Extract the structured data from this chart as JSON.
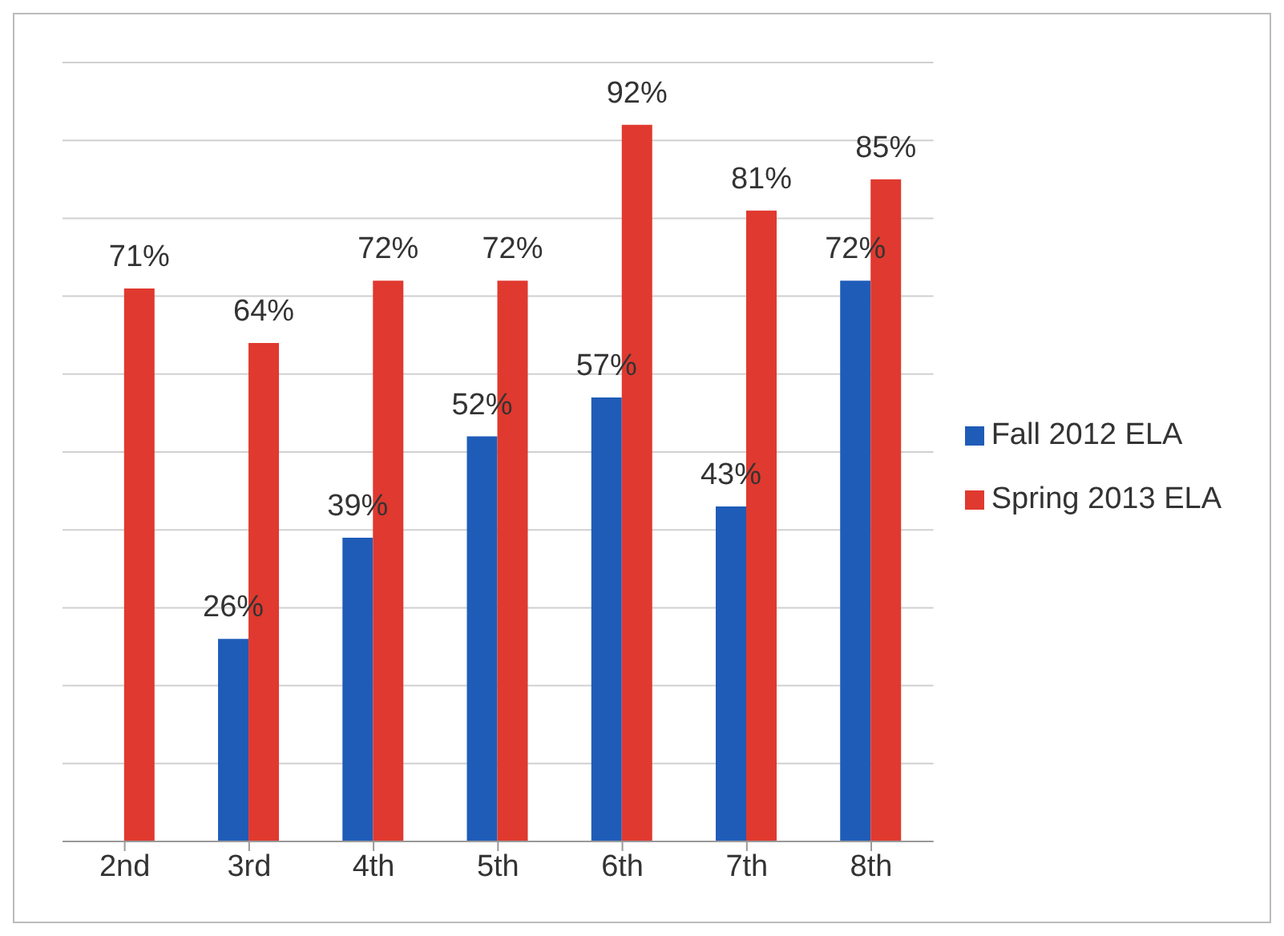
{
  "chart_data": {
    "type": "bar",
    "categories": [
      "2nd",
      "3rd",
      "4th",
      "5th",
      "6th",
      "7th",
      "8th"
    ],
    "series": [
      {
        "name": "Fall 2012 ELA",
        "color": "#1f5cb8",
        "values": [
          null,
          26,
          39,
          52,
          57,
          43,
          72
        ],
        "value_labels": [
          null,
          "26%",
          "39%",
          "52%",
          "57%",
          "43%",
          "72%"
        ]
      },
      {
        "name": "Spring 2013 ELA",
        "color": "#e0392f",
        "values": [
          71,
          64,
          72,
          72,
          92,
          81,
          85
        ],
        "value_labels": [
          "71%",
          "64%",
          "72%",
          "72%",
          "92%",
          "81%",
          "85%"
        ]
      }
    ],
    "ylim": [
      0,
      100
    ],
    "yticks": [
      {
        "value": 0,
        "label": null
      },
      {
        "value": 10,
        "label": null
      },
      {
        "value": 20,
        "label": null
      },
      {
        "value": 30,
        "label": null
      },
      {
        "value": 40,
        "label": null
      },
      {
        "value": 50,
        "label": null
      },
      {
        "value": 60,
        "label": null
      },
      {
        "value": 70,
        "label": null
      },
      {
        "value": 80,
        "label": null
      },
      {
        "value": 90,
        "label": null
      },
      {
        "value": 100,
        "label": null
      }
    ],
    "tick_labels": "x",
    "grid": "y",
    "legend": "right"
  }
}
